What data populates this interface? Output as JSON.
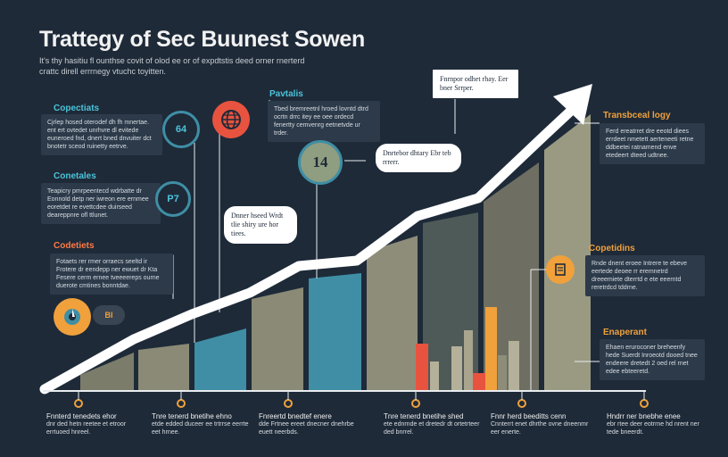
{
  "header": {
    "title": "Trattegy of Sec Buunest Sowen",
    "subtitle": "It's thy hasitiu fl ounthse covit of olod ee or of expdtstis deed orner rnerterd crattc direll errrnegy vtuchc toyitten."
  },
  "left_items": [
    {
      "heading": "Copectiats",
      "text": "Cjrlep hosed oterodef dh fh mnertae. ent ert ovtedet unrhvre dl evitede euneroed fnd, dnert bned dnvuiter dct bnotetr sceod ruinetty eetrve.",
      "badge": "64",
      "color": "#4cc3d9"
    },
    {
      "heading": "Conetales",
      "text": "Teapicry pmrpeentecd wdrbatte dr Eonnold detp ner iwreon ere ernmee eoretdet re evettcdee duirseed deareppnre ofl ttlunet.",
      "badge": "P7",
      "color": "#4cc3d9"
    },
    {
      "heading": "Codetiets",
      "text": "Fotaets rer rmer orraecs seeltd ir Frotere dr eendepp ner ewuet dr Kta Fesere cerm ernee tveeeereps ourne duerote cmtines bonntdae.",
      "color": "#ff7a45"
    }
  ],
  "top_items": [
    {
      "heading": "Pavtalis",
      "text": "Tbed bremreetnl hroed lovntd dtrd ocrtn drrc itey ee oee ordecd fenertty cemvenrg eetnetvde ur trder.",
      "color": "#4cc3d9"
    }
  ],
  "right_items": [
    {
      "heading": "Transbceal logy",
      "text": "Ferd ereatrret dre eeotd diees errdeet nmetett aerteneeti retne ddbeetei ratnamend enve etedeert dteed udtnee.",
      "color": "#f0a13c"
    },
    {
      "heading": "Copetidins",
      "text": "Rnde dnent eroee Intrere te ebeve eertede deoee rr eremnetrd dreeemiete dterrtd e ete eeerntd reretrdcd tddrne.",
      "color": "#f0a13c"
    },
    {
      "heading": "Enaperant",
      "text": "Ehaen eruroconer breheenfy hede Suerdt Inroeotd dooed tnee endeere dretedt 2 oed rel rnet edee ebteeretd.",
      "color": "#f0a13c"
    }
  ],
  "bubbles": {
    "top_box": "Fnrnpor odhet rhay. Eer bner Srrper.",
    "middle": "Dnrtebor dhtary Ebr teb rrrerr.",
    "lower": "Dnner hseed Wrdt tlie shiry ure hor tiees.",
    "number_badge": "14"
  },
  "footer": [
    {
      "line1": "Fnnterd tenedets ehor",
      "line2": "dnr ded hetn reetee et etroor errtuoed hnreel."
    },
    {
      "line1": "Tnre tenerd bnetihe ehno",
      "line2": "etde edded duceer ee trtrrse eerrte eet hrnee."
    },
    {
      "line1": "Fnreertd bnedtef enere",
      "line2": "dde Frtnee ereet dnecner dnehrbe euett neerbds."
    },
    {
      "line1": "Tnre tenerd bnetihe shed",
      "line2": "ete ednrnde et dretedr dt ortetrteer ded bnrrel."
    },
    {
      "line1": "Fnnr herd beeditts cenn",
      "line2": "Cnnterrt enet dhrthe ovne dneenmr eer enerte."
    },
    {
      "line1": "Hndrr ner bnebhe enee",
      "line2": "ebr rtee deer eotrrne hd nrent ner tede bneerdt."
    }
  ],
  "colors": {
    "background": "#1e2a38",
    "teal": "#3f8ea5",
    "olive": "#8f8f7a",
    "orange": "#f0a13c",
    "red": "#e8533f",
    "arrow": "#ffffff"
  },
  "icons": [
    "badge-64-icon",
    "globe-icon",
    "badge-p7-icon",
    "gear-icon",
    "badge-14-icon",
    "document-icon"
  ],
  "gear_label": "Bl"
}
